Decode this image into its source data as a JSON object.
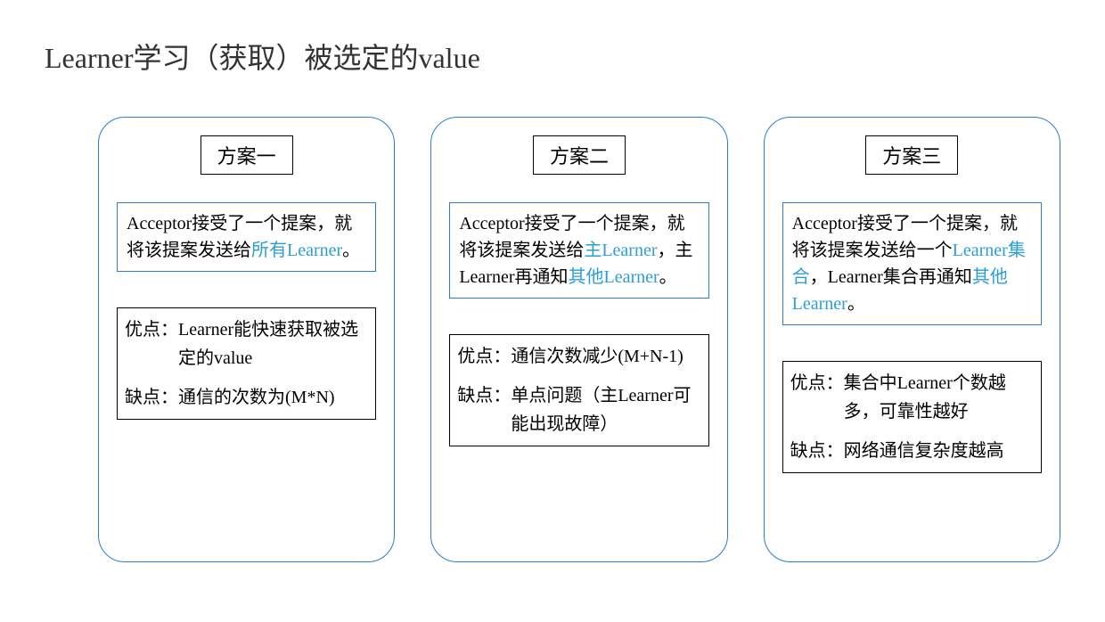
{
  "title": "Learner学习（获取）被选定的value",
  "border_color": "#2b7cd3",
  "highlight_color": "#2b9fd3",
  "text_color": "#333333",
  "background_color": "#ffffff",
  "panels": [
    {
      "label": "方案一",
      "desc_pre": "Acceptor接受了一个提案，就将该提案发送给",
      "desc_hl": "所有Learner",
      "desc_post": "。",
      "pro_label": "优点：",
      "pro_text": "Learner能快速获取被选定的value",
      "con_label": "缺点：",
      "con_text": "通信的次数为(M*N)"
    },
    {
      "label": "方案二",
      "desc_pre": "Acceptor接受了一个提案，就将该提案发送给",
      "desc_hl": "主Learner",
      "desc_mid": "，主Learner再通知",
      "desc_hl2": "其他Learner",
      "desc_post": "。",
      "pro_label": "优点：",
      "pro_text": "通信次数减少(M+N-1)",
      "con_label": "缺点：",
      "con_text": "单点问题（主Learner可能出现故障）"
    },
    {
      "label": "方案三",
      "desc_pre": "Acceptor接受了一个提案，就将该提案发送给一个",
      "desc_hl": "Learner集合",
      "desc_mid": "，Learner集合再通知",
      "desc_hl2": "其他Learner",
      "desc_post": "。",
      "pro_label": "优点：",
      "pro_text": "集合中Learner个数越多，可靠性越好",
      "con_label": "缺点：",
      "con_text": "网络通信复杂度越高"
    }
  ]
}
